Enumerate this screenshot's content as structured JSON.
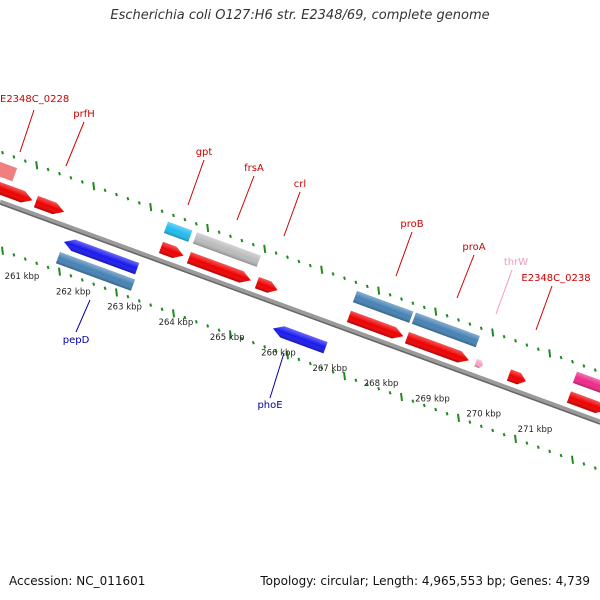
{
  "title": "Escherichia coli O127:H6 str. E2348/69, complete genome",
  "footer": {
    "accession": "Accession: NC_011601",
    "summary": "Topology: circular; Length: 4,965,553 bp; Genes: 4,739"
  },
  "colors": {
    "backbone": "#888888",
    "ticks": "#1f8a1f",
    "red": "#ee0000",
    "steel": "#4682b4",
    "blue": "#1a1aee",
    "cyan": "#22bbee",
    "gray": "#bbbbbb",
    "darkgray": "#666666",
    "salmon": "#f08080",
    "pink": "#f9a3c6",
    "magenta": "#ee2a8a",
    "labelRed": "#cc0000",
    "labelBlue": "#0000aa",
    "labelPink": "#f29ac0"
  },
  "scale": {
    "labels": [
      "261 kbp",
      "262 kbp",
      "263 kbp",
      "264 kbp",
      "265 kbp",
      "266 kbp",
      "267 kbp",
      "268 kbp",
      "269 kbp",
      "270 kbp",
      "271 kbp"
    ]
  },
  "genes": [
    {
      "label": "E2348C_0228",
      "labelColor": "labelRed",
      "strand": "+"
    },
    {
      "label": "prfH",
      "labelColor": "labelRed",
      "strand": "+"
    },
    {
      "label": "gpt",
      "labelColor": "labelRed",
      "strand": "+"
    },
    {
      "label": "frsA",
      "labelColor": "labelRed",
      "strand": "+"
    },
    {
      "label": "crl",
      "labelColor": "labelRed",
      "strand": "+"
    },
    {
      "label": "proB",
      "labelColor": "labelRed",
      "strand": "+"
    },
    {
      "label": "proA",
      "labelColor": "labelRed",
      "strand": "+"
    },
    {
      "label": "thrW",
      "labelColor": "labelPink",
      "strand": "+"
    },
    {
      "label": "E2348C_0238",
      "labelColor": "labelRed",
      "strand": "+"
    },
    {
      "label": "pepD",
      "labelColor": "labelBlue",
      "strand": "-"
    },
    {
      "label": "phoE",
      "labelColor": "labelBlue",
      "strand": "-"
    }
  ]
}
